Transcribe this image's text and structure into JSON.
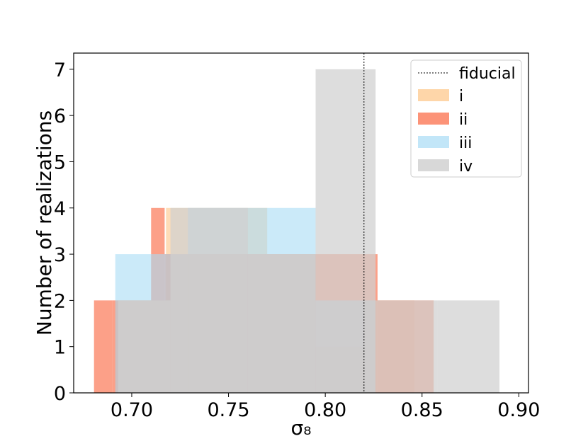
{
  "chart_data": {
    "type": "histogram",
    "xlabel": "σ₈",
    "ylabel": "Number of realizations",
    "xlim": [
      0.67,
      0.905
    ],
    "ylim": [
      0,
      7.35
    ],
    "x_ticks": [
      "0.70",
      "0.75",
      "0.80",
      "0.85",
      "0.90"
    ],
    "y_ticks": [
      "0",
      "1",
      "2",
      "3",
      "4",
      "5",
      "6",
      "7"
    ],
    "reference_line": {
      "name": "fiducial",
      "x": 0.82,
      "style": "dashed",
      "color": "#000000"
    },
    "legend_position": "top-right",
    "series": [
      {
        "name": "i",
        "color": "#fdb462",
        "alpha": 0.45,
        "bins": [
          {
            "x0": 0.6915,
            "x1": 0.7177,
            "count": 2
          },
          {
            "x0": 0.7177,
            "x1": 0.744,
            "count": 4
          },
          {
            "x0": 0.744,
            "x1": 0.77,
            "count": 4
          },
          {
            "x0": 0.77,
            "x1": 0.795,
            "count": 3
          },
          {
            "x0": 0.795,
            "x1": 0.82,
            "count": 1
          },
          {
            "x0": 0.82,
            "x1": 0.846,
            "count": 2
          }
        ]
      },
      {
        "name": "ii",
        "color": "#fb8060",
        "alpha": 0.75,
        "bins": [
          {
            "x0": 0.6805,
            "x1": 0.69,
            "count": 2
          },
          {
            "x0": 0.69,
            "x1": 0.71,
            "count": 2
          },
          {
            "x0": 0.71,
            "x1": 0.717,
            "count": 4
          },
          {
            "x0": 0.717,
            "x1": 0.795,
            "count": 3
          },
          {
            "x0": 0.795,
            "x1": 0.827,
            "count": 3
          },
          {
            "x0": 0.827,
            "x1": 0.856,
            "count": 2
          }
        ]
      },
      {
        "name": "iii",
        "color": "#a8dcf5",
        "alpha": 0.6,
        "bins": [
          {
            "x0": 0.6915,
            "x1": 0.729,
            "count": 3
          },
          {
            "x0": 0.729,
            "x1": 0.769,
            "count": 4
          },
          {
            "x0": 0.769,
            "x1": 0.795,
            "count": 4
          },
          {
            "x0": 0.795,
            "x1": 0.826,
            "count": 2
          }
        ]
      },
      {
        "name": "iv",
        "color": "#d0d0d0",
        "alpha": 0.72,
        "bins": [
          {
            "x0": 0.693,
            "x1": 0.72,
            "count": 2
          },
          {
            "x0": 0.72,
            "x1": 0.76,
            "count": 4
          },
          {
            "x0": 0.76,
            "x1": 0.795,
            "count": 3
          },
          {
            "x0": 0.795,
            "x1": 0.826,
            "count": 7
          },
          {
            "x0": 0.826,
            "x1": 0.858,
            "count": 2
          },
          {
            "x0": 0.858,
            "x1": 0.89,
            "count": 2
          }
        ]
      }
    ]
  }
}
